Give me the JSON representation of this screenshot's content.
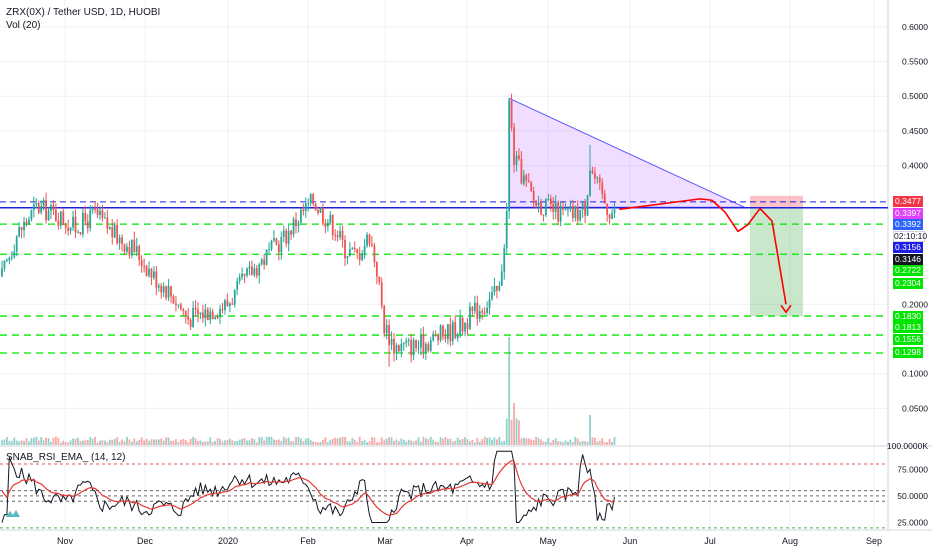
{
  "header": {
    "symbol_line": "ZRX(0X) / Tether USD, 1D, HUOBI",
    "volume_line": "Vol (20)",
    "indicator_line": "SNAB_RSI_EMA_ (14, 12)"
  },
  "chart_data": {
    "type": "candlestick",
    "title": "ZRX(0X) / Tether USD, 1D, HUOBI",
    "x_ticks": [
      "Nov",
      "Dec",
      "2020",
      "Feb",
      "Mar",
      "Apr",
      "May",
      "Jun",
      "Jul",
      "Aug",
      "Sep"
    ],
    "price_axis": {
      "ticks": [
        0.6,
        0.55,
        0.5,
        0.45,
        0.4,
        0.2,
        0.1,
        0.05
      ],
      "tick_labels": [
        "0.6000",
        "0.5500",
        "0.5000",
        "0.4500",
        "0.4000",
        "0.2000",
        "0.1000",
        "0.0500"
      ],
      "range": [
        0.0,
        0.62
      ]
    },
    "price_path": [
      [
        0,
        0.24
      ],
      [
        6,
        0.3
      ],
      [
        14,
        0.34
      ],
      [
        22,
        0.33
      ],
      [
        30,
        0.31
      ],
      [
        38,
        0.33
      ],
      [
        46,
        0.3
      ],
      [
        54,
        0.28
      ],
      [
        62,
        0.24
      ],
      [
        68,
        0.22
      ],
      [
        76,
        0.18
      ],
      [
        84,
        0.19
      ],
      [
        92,
        0.2
      ],
      [
        100,
        0.24
      ],
      [
        108,
        0.27
      ],
      [
        116,
        0.3
      ],
      [
        122,
        0.33
      ],
      [
        127,
        0.35
      ],
      [
        131,
        0.33
      ],
      [
        136,
        0.31
      ],
      [
        140,
        0.28
      ],
      [
        145,
        0.27
      ],
      [
        150,
        0.3
      ],
      [
        153,
        0.25
      ],
      [
        156,
        0.17
      ],
      [
        160,
        0.14
      ],
      [
        164,
        0.14
      ],
      [
        170,
        0.14
      ],
      [
        176,
        0.15
      ],
      [
        182,
        0.16
      ],
      [
        188,
        0.17
      ],
      [
        193,
        0.19
      ],
      [
        197,
        0.2
      ],
      [
        200,
        0.21
      ],
      [
        203,
        0.22
      ],
      [
        206,
        0.33
      ],
      [
        207,
        0.49
      ],
      [
        209,
        0.41
      ],
      [
        213,
        0.38
      ],
      [
        217,
        0.35
      ],
      [
        222,
        0.34
      ],
      [
        228,
        0.33
      ],
      [
        234,
        0.33
      ],
      [
        238,
        0.34
      ],
      [
        240,
        0.4
      ],
      [
        243,
        0.37
      ],
      [
        247,
        0.34
      ],
      [
        250,
        0.33
      ]
    ],
    "volume_spikes": [
      {
        "day": 207,
        "value": 0.18
      },
      {
        "day": 209,
        "value": 0.07
      },
      {
        "day": 240,
        "value": 0.05
      }
    ],
    "horizontal_levels": [
      {
        "value": 0.3477,
        "label": "0.3477",
        "color": "#f23645",
        "style": "dashed-blue"
      },
      {
        "value": 0.3397,
        "label": "0.3397",
        "color": "#e040fb",
        "style": "none"
      },
      {
        "value": 0.3392,
        "label": "0.3392",
        "color": "#2962ff",
        "style": "solid-blue"
      },
      {
        "value": 0.3156,
        "label": "0.3156",
        "color": "#1e1ee8",
        "style": "dashed-green"
      },
      {
        "value": 0.3146,
        "label": "0.3146",
        "color": "#131722",
        "style": "none"
      },
      {
        "value": 0.2722,
        "label": "0.2722",
        "color": "#00e600",
        "style": "dashed-green"
      },
      {
        "value": 0.2304,
        "label": "0.2304",
        "color": "#00e600",
        "style": "none"
      },
      {
        "value": 0.183,
        "label": "0.1830",
        "color": "#00e600",
        "style": "dashed-green"
      },
      {
        "value": 0.1813,
        "label": "0.1813",
        "color": "#00e600",
        "style": "none"
      },
      {
        "value": 0.1556,
        "label": "0.1556",
        "color": "#00e600",
        "style": "dashed-green"
      },
      {
        "value": 0.1298,
        "label": "0.1298",
        "color": "#00e600",
        "style": "dashed-green"
      }
    ],
    "countdown_label": "02:10:10",
    "rsi_axis": {
      "ticks": [
        75.0,
        50.0,
        25.0
      ],
      "tick_labels": [
        "75.0000",
        "50.0000",
        "25.0000"
      ],
      "range": [
        18,
        95
      ]
    },
    "rsi_bands": [
      80,
      55,
      50,
      45,
      20
    ],
    "volume_axis_label": "100.0000K",
    "colors": {
      "up": "#26a69a",
      "down": "#ef5350",
      "level_blue": "#1f1fe0",
      "level_green": "#00e600",
      "projection": "#ff0000"
    }
  }
}
